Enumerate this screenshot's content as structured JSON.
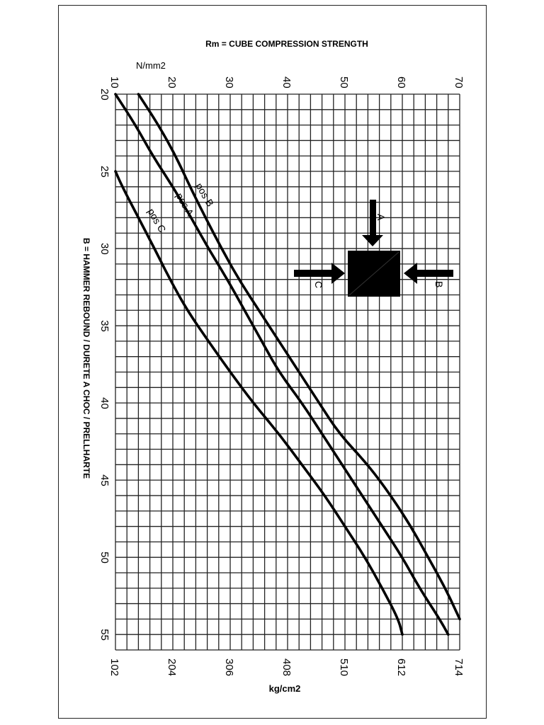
{
  "chart_data": {
    "type": "line",
    "title": "Rm = CUBE COMPRESSION STRENGTH",
    "orientation": "rotated 90 degrees (hammer rebound on vertical axis, strength on horizontal axis)",
    "x_axis_top": {
      "label": "N/mm2",
      "ticks": [
        10,
        20,
        30,
        40,
        50,
        60,
        70
      ],
      "range": [
        10,
        70
      ]
    },
    "x_axis_bottom": {
      "label": "kg/cm2",
      "ticks": [
        102,
        204,
        306,
        408,
        510,
        612,
        714
      ],
      "range": [
        102,
        714
      ]
    },
    "y_axis": {
      "label": "B = HAMMER REBOUND / DURETE A CHOC / PRELLHARTE",
      "ticks": [
        20,
        25,
        30,
        35,
        40,
        45,
        50,
        55
      ],
      "range": [
        20,
        56
      ]
    },
    "grid": true,
    "series": [
      {
        "name": "pos B",
        "points": [
          [
            20,
            14
          ],
          [
            22,
            17.5
          ],
          [
            24,
            20.5
          ],
          [
            26,
            23
          ],
          [
            28,
            25.7
          ],
          [
            30,
            28.5
          ],
          [
            32,
            31.5
          ],
          [
            34,
            35
          ],
          [
            36,
            38.5
          ],
          [
            38,
            42
          ],
          [
            40,
            45.5
          ],
          [
            42,
            49
          ],
          [
            44,
            54
          ],
          [
            46,
            58
          ],
          [
            48,
            61.5
          ],
          [
            50,
            64.5
          ],
          [
            52,
            67.5
          ],
          [
            54,
            70
          ]
        ]
      },
      {
        "name": "pos A",
        "points": [
          [
            20,
            10
          ],
          [
            22,
            13.5
          ],
          [
            24,
            16.5
          ],
          [
            26,
            20
          ],
          [
            28,
            23.2
          ],
          [
            30,
            26.2
          ],
          [
            32,
            29.5
          ],
          [
            34,
            32.5
          ],
          [
            36,
            35.5
          ],
          [
            38,
            38.5
          ],
          [
            40,
            42.5
          ],
          [
            42,
            46
          ],
          [
            44,
            49.5
          ],
          [
            46,
            53
          ],
          [
            48,
            56.5
          ],
          [
            50,
            60
          ],
          [
            52,
            63
          ],
          [
            54,
            66.5
          ],
          [
            55,
            68
          ]
        ]
      },
      {
        "name": "pos C",
        "points": [
          [
            25,
            10
          ],
          [
            26,
            11.2
          ],
          [
            28,
            14
          ],
          [
            30,
            16.8
          ],
          [
            32,
            19.5
          ],
          [
            34,
            22.5
          ],
          [
            36,
            26.2
          ],
          [
            38,
            30
          ],
          [
            40,
            34
          ],
          [
            42,
            38.5
          ],
          [
            44,
            42.5
          ],
          [
            46,
            46.5
          ],
          [
            48,
            50
          ],
          [
            50,
            53.5
          ],
          [
            52,
            56.5
          ],
          [
            54,
            59.3
          ],
          [
            55,
            60
          ]
        ]
      }
    ],
    "annotation": {
      "diagram": "concrete cube with three loading arrows",
      "arrows": [
        "A",
        "B",
        "C"
      ]
    }
  },
  "labels": {
    "title": "Rm = CUBE COMPRESSION STRENGTH",
    "top_unit": "N/mm2",
    "bottom_unit": "kg/cm2",
    "y_label": "B = HAMMER REBOUND / DURETE A CHOC / PRELLHARTE",
    "pos_b": "pos B",
    "pos_a": "pos A",
    "pos_c": "pos C",
    "arrow_a": "A",
    "arrow_b": "B",
    "arrow_c": "C"
  }
}
